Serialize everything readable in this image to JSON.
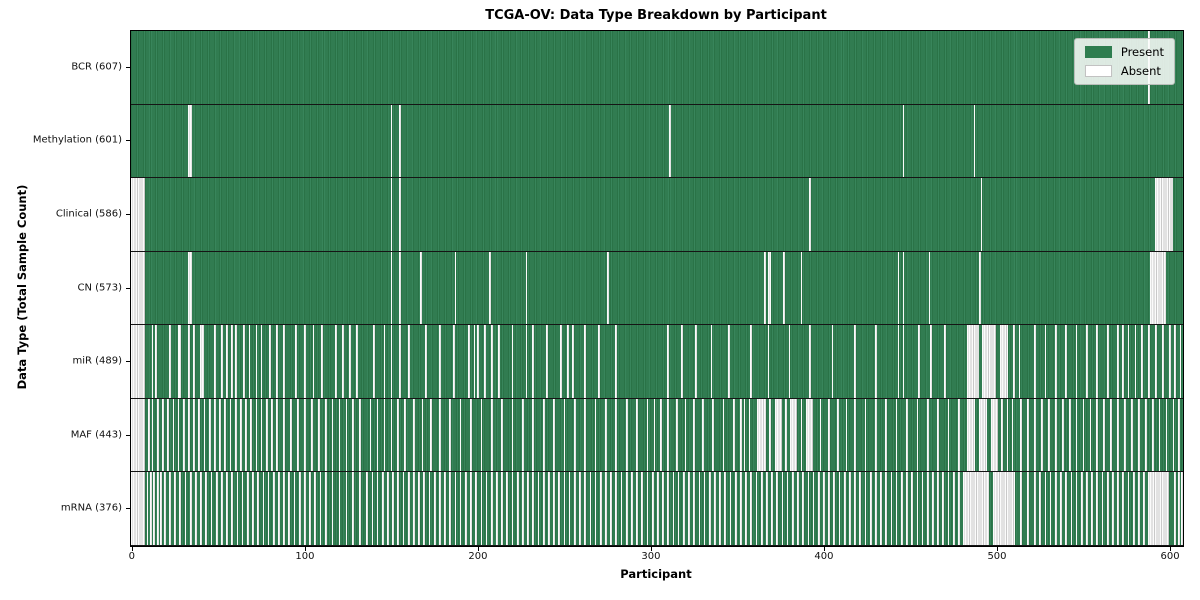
{
  "title": "TCGA-OV: Data Type Breakdown by Participant",
  "xlabel": "Participant",
  "ylabel": "Data Type (Total Sample Count)",
  "legend": {
    "present_label": "Present",
    "absent_label": "Absent"
  },
  "colors": {
    "present": "#2e7d4f",
    "present_edge": "#2a7347",
    "absent": "#ffffff",
    "absent_edge": "#c9c9c9"
  },
  "chart_data": {
    "type": "heatmap",
    "n_participants": 608,
    "x_ticks": [
      0,
      100,
      200,
      300,
      400,
      500,
      600
    ],
    "x_range": [
      0,
      608
    ],
    "legend_position": "upper right",
    "rows": [
      {
        "name": "BCR",
        "label": "BCR (607)",
        "present_count": 607,
        "absent": [
          588
        ]
      },
      {
        "name": "Methylation",
        "label": "Methylation (601)",
        "present_count": 601,
        "absent": [
          [
            33,
            34
          ],
          150,
          155,
          311,
          446,
          487
        ]
      },
      {
        "name": "Clinical",
        "label": "Clinical (586)",
        "present_count": 586,
        "absent": [
          [
            0,
            7
          ],
          150,
          155,
          392,
          491,
          [
            592,
            601
          ]
        ]
      },
      {
        "name": "CN",
        "label": "CN (573)",
        "present_count": 573,
        "absent": [
          [
            0,
            7
          ],
          [
            33,
            34
          ],
          150,
          155,
          167,
          187,
          207,
          228,
          275,
          366,
          [
            368,
            369
          ],
          377,
          387,
          443,
          446,
          461,
          490,
          [
            589,
            597
          ]
        ]
      },
      {
        "name": "miR",
        "label": "miR (489)",
        "present_count": 489,
        "absent": [
          [
            0,
            7
          ],
          12,
          14,
          22,
          27,
          28,
          33,
          36,
          40,
          41,
          48,
          52,
          55,
          58,
          60,
          65,
          68,
          72,
          75,
          80,
          84,
          88,
          95,
          100,
          105,
          110,
          118,
          122,
          126,
          130,
          140,
          146,
          150,
          155,
          160,
          170,
          178,
          186,
          195,
          198,
          200,
          204,
          208,
          212,
          220,
          228,
          232,
          240,
          248,
          252,
          255,
          262,
          270,
          280,
          310,
          318,
          326,
          335,
          345,
          358,
          368,
          380,
          392,
          405,
          418,
          430,
          443,
          446,
          455,
          462,
          470,
          [
            483,
            489
          ],
          [
            492,
            499
          ],
          [
            502,
            506
          ],
          510,
          513,
          522,
          528,
          534,
          540,
          546,
          552,
          558,
          564,
          570,
          573,
          576,
          580,
          584,
          588,
          592,
          596,
          600,
          603,
          606
        ]
      },
      {
        "name": "MAF",
        "label": "MAF (443)",
        "present_count": 443,
        "absent": [
          [
            0,
            7
          ],
          10,
          12,
          15,
          18,
          21,
          24,
          27,
          30,
          33,
          36,
          39,
          42,
          45,
          48,
          51,
          54,
          57,
          60,
          63,
          66,
          69,
          72,
          75,
          78,
          81,
          84,
          88,
          92,
          96,
          100,
          104,
          108,
          112,
          116,
          120,
          124,
          128,
          132,
          138,
          142,
          146,
          150,
          154,
          158,
          163,
          168,
          173,
          178,
          184,
          190,
          196,
          202,
          208,
          214,
          220,
          226,
          232,
          238,
          244,
          250,
          256,
          262,
          268,
          274,
          280,
          286,
          292,
          298,
          302,
          306,
          310,
          315,
          320,
          325,
          330,
          336,
          342,
          348,
          352,
          354,
          357,
          [
            362,
            366
          ],
          369,
          [
            372,
            375
          ],
          378,
          [
            381,
            384
          ],
          387,
          [
            390,
            393
          ],
          398,
          403,
          408,
          413,
          418,
          424,
          430,
          436,
          442,
          448,
          454,
          460,
          466,
          472,
          478,
          [
            483,
            487
          ],
          [
            490,
            494
          ],
          [
            497,
            500
          ],
          503,
          506,
          509,
          514,
          518,
          522,
          526,
          530,
          534,
          538,
          542,
          546,
          550,
          554,
          558,
          562,
          566,
          570,
          574,
          578,
          582,
          586,
          590,
          594,
          598,
          602,
          605
        ]
      },
      {
        "name": "mRNA",
        "label": "mRNA (376)",
        "present_count": 376,
        "absent": [
          [
            0,
            7
          ],
          9,
          11,
          13,
          15,
          17,
          19,
          22,
          25,
          28,
          31,
          34,
          37,
          40,
          43,
          46,
          49,
          52,
          55,
          58,
          61,
          64,
          67,
          70,
          73,
          76,
          79,
          82,
          85,
          88,
          91,
          94,
          97,
          100,
          103,
          106,
          109,
          112,
          116,
          120,
          124,
          128,
          132,
          136,
          139,
          142,
          145,
          148,
          151,
          154,
          157,
          160,
          163,
          166,
          169,
          172,
          175,
          178,
          181,
          184,
          187,
          190,
          193,
          196,
          199,
          202,
          205,
          208,
          211,
          214,
          217,
          220,
          223,
          226,
          229,
          232,
          235,
          238,
          241,
          244,
          247,
          250,
          253,
          256,
          259,
          262,
          265,
          268,
          271,
          274,
          277,
          280,
          283,
          286,
          289,
          292,
          295,
          298,
          301,
          304,
          307,
          310,
          313,
          316,
          319,
          322,
          325,
          328,
          331,
          334,
          337,
          340,
          343,
          346,
          349,
          352,
          355,
          358,
          361,
          364,
          367,
          370,
          373,
          376,
          379,
          382,
          385,
          388,
          391,
          394,
          397,
          400,
          403,
          406,
          409,
          412,
          415,
          418,
          421,
          424,
          427,
          430,
          433,
          436,
          439,
          442,
          445,
          448,
          451,
          454,
          457,
          460,
          463,
          466,
          469,
          472,
          475,
          478,
          [
            481,
            495
          ],
          [
            498,
            510
          ],
          514,
          518,
          522,
          525,
          528,
          531,
          534,
          537,
          540,
          543,
          546,
          549,
          552,
          555,
          558,
          561,
          564,
          567,
          570,
          573,
          576,
          579,
          582,
          585,
          [
            588,
            599
          ],
          603,
          605,
          607
        ]
      }
    ]
  }
}
